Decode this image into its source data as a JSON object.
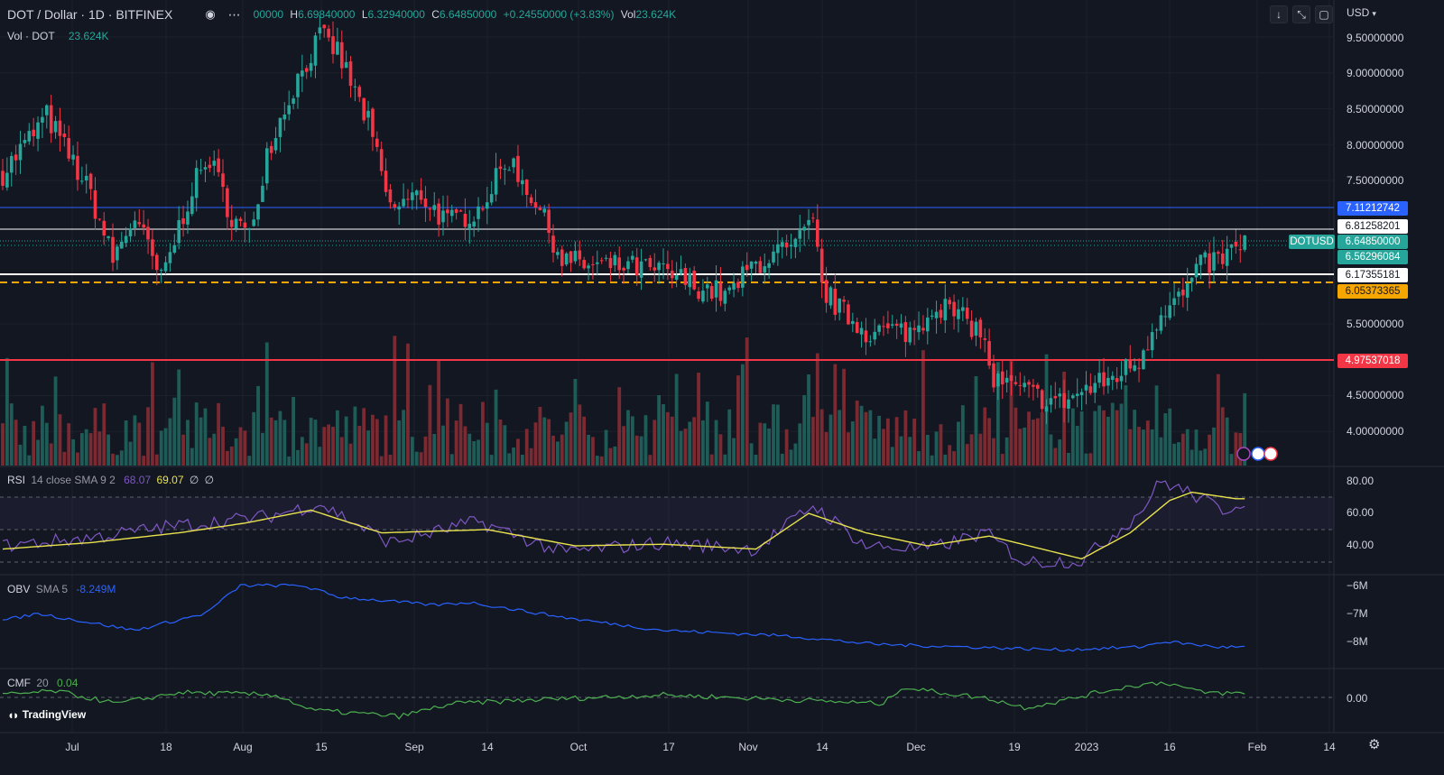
{
  "header": {
    "symbol": "DOT / Dollar · 1D · BITFINEX",
    "open": "00000",
    "high_label": "H",
    "high": "6.69840000",
    "low_label": "L",
    "low": "6.32940000",
    "close_label": "C",
    "close": "6.64850000",
    "change": "+0.24550000 (+3.83%)",
    "vol_label": "Vol",
    "vol": "23.624K"
  },
  "volume_legend": {
    "label": "Vol · DOT",
    "value": "23.624K"
  },
  "currency": "USD",
  "icons": [
    "eye-icon",
    "more-icon",
    "arrow-down-icon",
    "collapse-icon",
    "maximize-icon",
    "gear-icon"
  ],
  "price_axis": [
    "9.50000000",
    "9.00000000",
    "8.50000000",
    "8.00000000",
    "7.50000000",
    "5.50000000",
    "4.50000000",
    "4.00000000"
  ],
  "price_levels": [
    {
      "value": "7.11212742",
      "color": "#2962ff",
      "text": "#ffffff"
    },
    {
      "value": "6.81258201",
      "color": "#ffffff",
      "text": "#131722"
    },
    {
      "value": "6.64850000",
      "color": "#26a69a",
      "text": "#ffffff",
      "tag": "DOTUSD"
    },
    {
      "value": "6.56296084",
      "color": "#26a69a",
      "text": "#ffffff"
    },
    {
      "value": "6.17355181",
      "color": "#ffffff",
      "text": "#131722"
    },
    {
      "value": "6.05373365",
      "color": "#f7a600",
      "text": "#131722"
    },
    {
      "value": "4.97537018",
      "color": "#f23645",
      "text": "#ffffff"
    }
  ],
  "rsi": {
    "label": "RSI",
    "params": "14 close SMA 9 2",
    "v1": "68.07",
    "v2": "69.07",
    "v3": "∅",
    "v4": "∅",
    "axis": [
      "80.00",
      "60.00",
      "40.00"
    ]
  },
  "obv": {
    "label": "OBV",
    "params": "SMA 5",
    "value": "-8.249M",
    "axis": [
      "−6M",
      "−7M",
      "−8M"
    ]
  },
  "cmf": {
    "label": "CMF",
    "params": "20",
    "value": "0.04",
    "axis": [
      "0.00"
    ]
  },
  "time_axis": [
    "Jul",
    "18",
    "Aug",
    "15",
    "Sep",
    "14",
    "Oct",
    "17",
    "Nov",
    "14",
    "Dec",
    "19",
    "2023",
    "16",
    "Feb",
    "14"
  ],
  "logo": "TradingView",
  "colors": {
    "up": "#26a69a",
    "down": "#f23645",
    "bg": "#131722",
    "rsi": "#7e57c2",
    "rsi_ma": "#e8e24e",
    "obv": "#2962ff",
    "cmf": "#4caf50"
  },
  "chart_data": {
    "type": "candlestick",
    "title": "DOT / Dollar · 1D · BITFINEX",
    "y_unit": "USD",
    "ylim": [
      3.75,
      9.75
    ],
    "x_ticks": [
      "Jul",
      "18",
      "Aug",
      "15",
      "Sep",
      "14",
      "Oct",
      "17",
      "Nov",
      "14",
      "Dec",
      "19",
      "2023",
      "16",
      "Feb",
      "14"
    ],
    "price_anchors": [
      [
        0,
        7.6
      ],
      [
        10,
        8.4
      ],
      [
        20,
        7.3
      ],
      [
        25,
        6.4
      ],
      [
        30,
        7.0
      ],
      [
        36,
        6.1
      ],
      [
        43,
        7.4
      ],
      [
        47,
        7.8
      ],
      [
        52,
        7.0
      ],
      [
        56,
        6.7
      ],
      [
        60,
        7.9
      ],
      [
        66,
        8.8
      ],
      [
        72,
        9.5
      ],
      [
        76,
        9.3
      ],
      [
        83,
        8.3
      ],
      [
        88,
        7.1
      ],
      [
        95,
        7.3
      ],
      [
        101,
        6.9
      ],
      [
        108,
        7.1
      ],
      [
        115,
        7.8
      ],
      [
        121,
        7.2
      ],
      [
        127,
        6.4
      ],
      [
        134,
        6.3
      ],
      [
        142,
        6.3
      ],
      [
        151,
        6.2
      ],
      [
        159,
        6.0
      ],
      [
        165,
        5.9
      ],
      [
        170,
        6.3
      ],
      [
        176,
        6.5
      ],
      [
        179,
        6.5
      ],
      [
        184,
        6.9
      ],
      [
        186,
        6.0
      ],
      [
        190,
        5.7
      ],
      [
        196,
        5.4
      ],
      [
        200,
        5.4
      ],
      [
        207,
        5.4
      ],
      [
        212,
        5.8
      ],
      [
        217,
        5.6
      ],
      [
        222,
        5.4
      ],
      [
        225,
        4.7
      ],
      [
        232,
        4.55
      ],
      [
        240,
        4.4
      ],
      [
        245,
        4.55
      ],
      [
        252,
        4.75
      ],
      [
        258,
        5.0
      ],
      [
        263,
        5.7
      ],
      [
        268,
        5.9
      ],
      [
        272,
        6.3
      ],
      [
        278,
        6.45
      ],
      [
        282,
        6.65
      ]
    ],
    "rsi_anchors": [
      [
        0,
        40
      ],
      [
        20,
        45
      ],
      [
        38,
        52
      ],
      [
        60,
        58
      ],
      [
        72,
        66
      ],
      [
        88,
        42
      ],
      [
        108,
        55
      ],
      [
        127,
        36
      ],
      [
        150,
        42
      ],
      [
        171,
        38
      ],
      [
        184,
        65
      ],
      [
        196,
        40
      ],
      [
        210,
        38
      ],
      [
        223,
        48
      ],
      [
        232,
        30
      ],
      [
        245,
        31
      ],
      [
        258,
        60
      ],
      [
        263,
        80
      ],
      [
        270,
        72
      ],
      [
        277,
        62
      ],
      [
        282,
        68
      ]
    ],
    "rsi_ma_anchors": [
      [
        0,
        38
      ],
      [
        20,
        42
      ],
      [
        40,
        48
      ],
      [
        55,
        54
      ],
      [
        70,
        62
      ],
      [
        86,
        48
      ],
      [
        110,
        50
      ],
      [
        130,
        40
      ],
      [
        150,
        41
      ],
      [
        171,
        38
      ],
      [
        183,
        60
      ],
      [
        196,
        48
      ],
      [
        210,
        40
      ],
      [
        224,
        46
      ],
      [
        245,
        32
      ],
      [
        256,
        48
      ],
      [
        265,
        68
      ],
      [
        270,
        73
      ],
      [
        280,
        69
      ],
      [
        282,
        69
      ]
    ],
    "obv_anchors": [
      [
        0,
        -7.25
      ],
      [
        8,
        -7.0
      ],
      [
        30,
        -7.6
      ],
      [
        46,
        -7.0
      ],
      [
        54,
        -6.0
      ],
      [
        68,
        -6.0
      ],
      [
        76,
        -6.4
      ],
      [
        98,
        -6.7
      ],
      [
        106,
        -6.6
      ],
      [
        130,
        -7.2
      ],
      [
        150,
        -7.6
      ],
      [
        178,
        -7.8
      ],
      [
        198,
        -8.1
      ],
      [
        220,
        -8.2
      ],
      [
        240,
        -8.3
      ],
      [
        258,
        -8.2
      ],
      [
        264,
        -8.0
      ],
      [
        276,
        -8.2
      ],
      [
        282,
        -8.2
      ]
    ],
    "cmf_anchors": [
      [
        0,
        0.02
      ],
      [
        12,
        0.05
      ],
      [
        26,
        -0.05
      ],
      [
        40,
        0.04
      ],
      [
        62,
        0.02
      ],
      [
        70,
        -0.1
      ],
      [
        90,
        -0.15
      ],
      [
        102,
        -0.05
      ],
      [
        120,
        -0.02
      ],
      [
        150,
        0.02
      ],
      [
        180,
        -0.02
      ],
      [
        200,
        -0.05
      ],
      [
        204,
        0.08
      ],
      [
        224,
        -0.01
      ],
      [
        232,
        -0.08
      ],
      [
        240,
        -0.03
      ],
      [
        250,
        0.05
      ],
      [
        258,
        0.1
      ],
      [
        264,
        0.12
      ],
      [
        272,
        0.04
      ],
      [
        282,
        0.03
      ]
    ]
  }
}
